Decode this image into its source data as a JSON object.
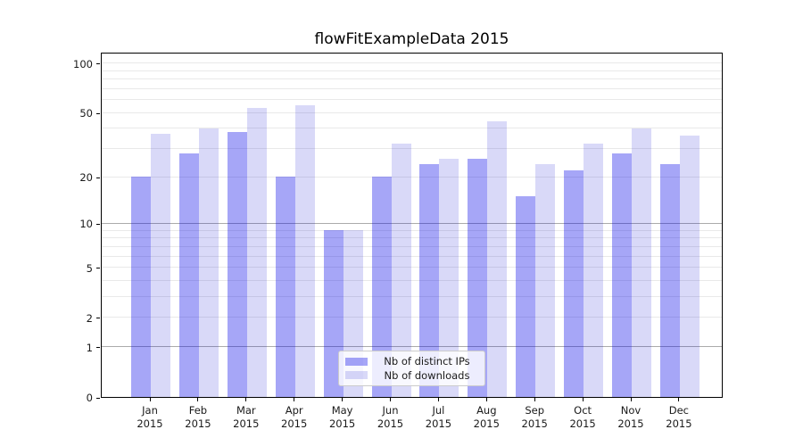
{
  "title": "flowFitExampleData 2015",
  "colors": {
    "distinct_ips_bar": "rgba(0,0,232,0.35)",
    "downloads_bar": "rgba(0,0,208,0.15)",
    "major_gridline": "#ababab",
    "minor_gridline": "#e9e9e9",
    "axis_frame": "#000000",
    "tick_label": "#1a1a1a"
  },
  "legend": {
    "position": "lower center",
    "items": [
      {
        "label": "Nb of distinct IPs",
        "series": "distinct_ips"
      },
      {
        "label": "Nb of downloads",
        "series": "downloads"
      }
    ]
  },
  "x_axis": {
    "months": [
      "Jan",
      "Feb",
      "Mar",
      "Apr",
      "May",
      "Jun",
      "Jul",
      "Aug",
      "Sep",
      "Oct",
      "Nov",
      "Dec"
    ],
    "year": "2015"
  },
  "chart_data": {
    "type": "bar",
    "title": "flowFitExampleData 2015",
    "xlabel": "",
    "ylabel": "",
    "scale": "log10(value+1), zero at baseline",
    "categories": [
      "Jan 2015",
      "Feb 2015",
      "Mar 2015",
      "Apr 2015",
      "May 2015",
      "Jun 2015",
      "Jul 2015",
      "Aug 2015",
      "Sep 2015",
      "Oct 2015",
      "Nov 2015",
      "Dec 2015"
    ],
    "series": [
      {
        "name": "Nb of distinct IPs",
        "values": [
          20,
          28,
          38,
          20,
          9,
          20,
          24,
          26,
          15,
          22,
          28,
          24
        ]
      },
      {
        "name": "Nb of downloads",
        "values": [
          37,
          40,
          53,
          55,
          9,
          32,
          26,
          44,
          24,
          32,
          40,
          36
        ]
      }
    ],
    "yticks": [
      0,
      1,
      2,
      5,
      10,
      20,
      50,
      100
    ],
    "gridlines": [
      1,
      2,
      3,
      4,
      5,
      6,
      7,
      8,
      9,
      10,
      20,
      30,
      40,
      50,
      60,
      70,
      80,
      90,
      100
    ],
    "major_gridlines": [
      1,
      10
    ],
    "ylim": [
      0,
      117
    ],
    "grid": true,
    "legend_position": "lower center"
  }
}
